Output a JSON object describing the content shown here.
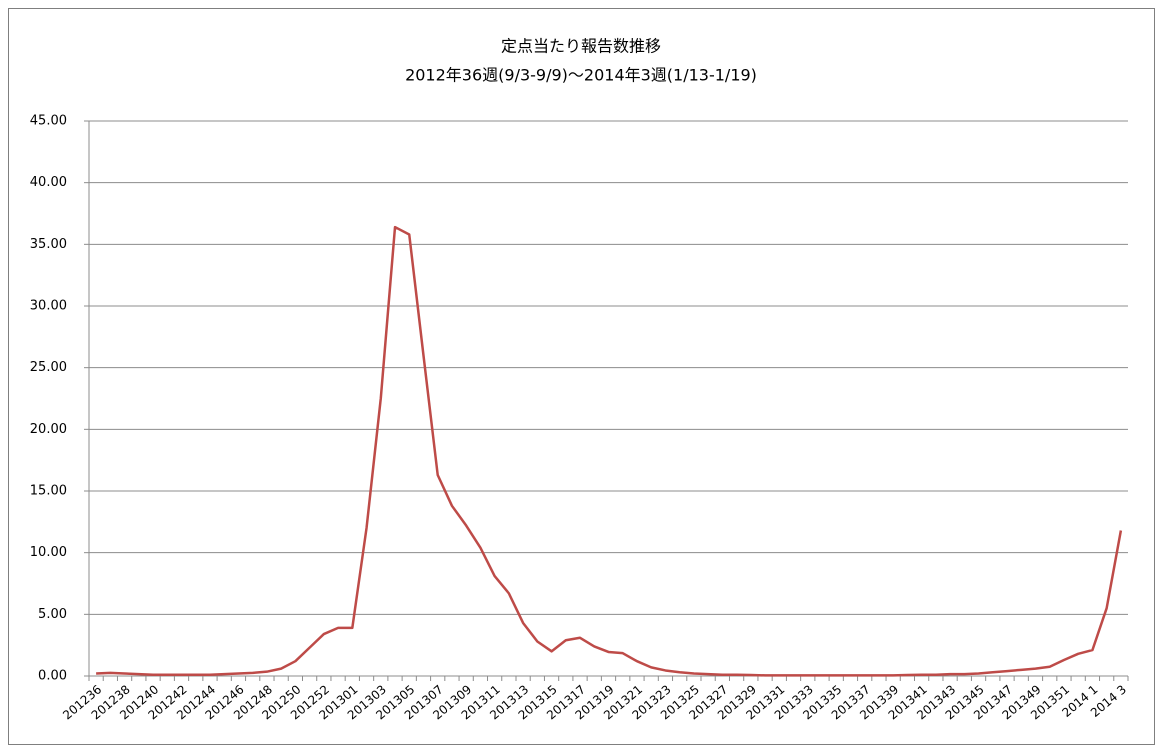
{
  "chart_data": {
    "type": "line",
    "title": "定点当たり報告数推移",
    "subtitle": "2012年36週(9/3-9/9)～2014年3週(1/13-1/19)",
    "categories": [
      "201236",
      null,
      "201238",
      null,
      "201240",
      null,
      "201242",
      null,
      "201244",
      null,
      "201246",
      null,
      "201248",
      null,
      "201250",
      null,
      "201252",
      null,
      "201301",
      null,
      "201303",
      null,
      "201305",
      null,
      "201307",
      null,
      "201309",
      null,
      "201311",
      null,
      "201313",
      null,
      "201315",
      null,
      "201317",
      null,
      "201319",
      null,
      "201321",
      null,
      "201323",
      null,
      "201325",
      null,
      "201327",
      null,
      "201329",
      null,
      "201331",
      null,
      "201333",
      null,
      "201335",
      null,
      "201337",
      null,
      "201339",
      null,
      "201341",
      null,
      "201343",
      null,
      "201345",
      null,
      "201347",
      null,
      "201349",
      null,
      "201351",
      null,
      "2014 1",
      null,
      "2014 3"
    ],
    "series": [
      {
        "color": "#be4b48",
        "values": [
          0.2,
          0.25,
          0.2,
          0.15,
          0.1,
          0.1,
          0.1,
          0.1,
          0.1,
          0.15,
          0.2,
          0.25,
          0.35,
          0.6,
          1.2,
          2.3,
          3.4,
          3.9,
          3.9,
          12.0,
          22.5,
          36.4,
          35.8,
          26.0,
          16.3,
          13.8,
          12.2,
          10.4,
          8.1,
          6.7,
          4.3,
          2.8,
          2.0,
          2.9,
          3.1,
          2.4,
          1.95,
          1.85,
          1.2,
          0.7,
          0.45,
          0.3,
          0.2,
          0.15,
          0.1,
          0.1,
          0.08,
          0.05,
          0.05,
          0.05,
          0.05,
          0.05,
          0.05,
          0.05,
          0.05,
          0.05,
          0.05,
          0.08,
          0.1,
          0.1,
          0.15,
          0.15,
          0.2,
          0.3,
          0.4,
          0.5,
          0.6,
          0.75,
          1.3,
          1.8,
          2.1,
          5.5,
          11.8
        ]
      }
    ],
    "ylim": [
      0,
      45
    ],
    "yticks": [
      {
        "value": 0,
        "label": "0.00"
      },
      {
        "value": 5,
        "label": "5.00"
      },
      {
        "value": 10,
        "label": "10.00"
      },
      {
        "value": 15,
        "label": "15.00"
      },
      {
        "value": 20,
        "label": "20.00"
      },
      {
        "value": 25,
        "label": "25.00"
      },
      {
        "value": 30,
        "label": "30.00"
      },
      {
        "value": 35,
        "label": "35.00"
      },
      {
        "value": 40,
        "label": "40.00"
      },
      {
        "value": 45,
        "label": "45.00"
      }
    ],
    "grid": true
  }
}
